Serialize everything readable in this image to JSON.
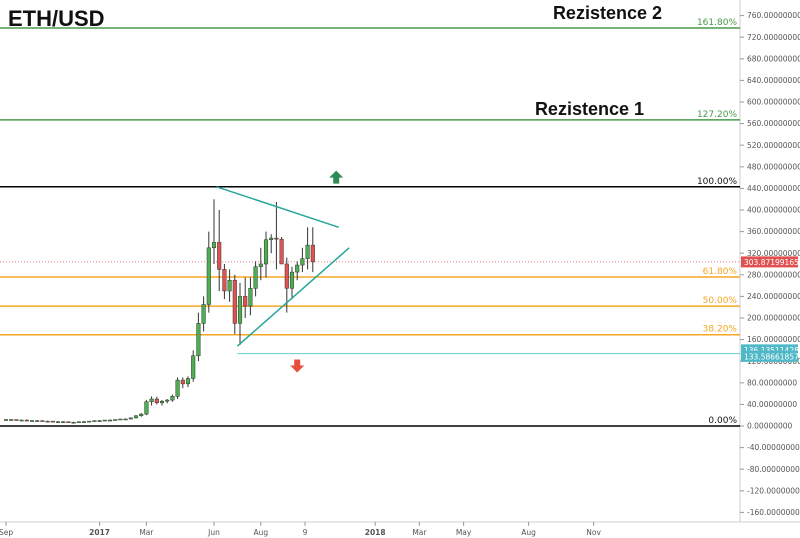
{
  "chart_data": {
    "type": "candlestick",
    "title": "ETH/USD",
    "ylim": [
      -180,
      780
    ],
    "y_ticks": [
      760,
      720,
      680,
      640,
      600,
      560,
      520,
      480,
      440,
      400,
      360,
      320,
      280,
      240,
      200,
      160,
      120,
      80,
      40,
      0,
      -40,
      -80,
      -120,
      -160
    ],
    "y_tick_labels": [
      "760.00000000",
      "720.00000000",
      "680.00000000",
      "640.00000000",
      "600.00000000",
      "560.00000000",
      "520.00000000",
      "480.00000000",
      "440.00000000",
      "400.00000000",
      "360.00000000",
      "320.00000000",
      "280.00000000",
      "240.00000000",
      "200.00000000",
      "160.00000000",
      "120.00000000",
      "80.00000000",
      "40.00000000",
      "0.00000000",
      "-40.00000000",
      "-80.00000000",
      "-120.00000000",
      "-160.00000000"
    ],
    "x_labels": [
      {
        "label": "Sep",
        "week": 0
      },
      {
        "label": "2017",
        "week": 18
      },
      {
        "label": "Mar",
        "week": 27
      },
      {
        "label": "Jun",
        "week": 40
      },
      {
        "label": "Aug",
        "week": 49
      },
      {
        "label": "9",
        "week": 57.5
      },
      {
        "label": "2018",
        "week": 71
      },
      {
        "label": "Mar",
        "week": 79.5
      },
      {
        "label": "May",
        "week": 88
      },
      {
        "label": "Aug",
        "week": 100.5
      },
      {
        "label": "Nov",
        "week": 113
      }
    ],
    "weeks_visible": 118,
    "candles": [
      {
        "w": 0,
        "o": 12,
        "h": 13,
        "l": 11,
        "c": 12
      },
      {
        "w": 1,
        "o": 12,
        "h": 13,
        "l": 11,
        "c": 12
      },
      {
        "w": 2,
        "o": 12,
        "h": 12,
        "l": 11,
        "c": 11
      },
      {
        "w": 3,
        "o": 11,
        "h": 12,
        "l": 10,
        "c": 11
      },
      {
        "w": 4,
        "o": 11,
        "h": 12,
        "l": 10,
        "c": 10
      },
      {
        "w": 5,
        "o": 10,
        "h": 11,
        "l": 9,
        "c": 10
      },
      {
        "w": 6,
        "o": 10,
        "h": 11,
        "l": 9,
        "c": 10
      },
      {
        "w": 7,
        "o": 10,
        "h": 10,
        "l": 9,
        "c": 9
      },
      {
        "w": 8,
        "o": 9,
        "h": 10,
        "l": 8,
        "c": 9
      },
      {
        "w": 9,
        "o": 9,
        "h": 9,
        "l": 8,
        "c": 8
      },
      {
        "w": 10,
        "o": 8,
        "h": 9,
        "l": 7,
        "c": 8
      },
      {
        "w": 11,
        "o": 8,
        "h": 9,
        "l": 7,
        "c": 8
      },
      {
        "w": 12,
        "o": 8,
        "h": 8,
        "l": 7,
        "c": 7
      },
      {
        "w": 13,
        "o": 7,
        "h": 8,
        "l": 7,
        "c": 7
      },
      {
        "w": 14,
        "o": 7,
        "h": 8,
        "l": 7,
        "c": 8
      },
      {
        "w": 15,
        "o": 8,
        "h": 9,
        "l": 7,
        "c": 8
      },
      {
        "w": 16,
        "o": 8,
        "h": 9,
        "l": 8,
        "c": 9
      },
      {
        "w": 17,
        "o": 9,
        "h": 10,
        "l": 8,
        "c": 10
      },
      {
        "w": 18,
        "o": 10,
        "h": 11,
        "l": 9,
        "c": 10
      },
      {
        "w": 19,
        "o": 10,
        "h": 11,
        "l": 9,
        "c": 11
      },
      {
        "w": 20,
        "o": 11,
        "h": 12,
        "l": 10,
        "c": 11
      },
      {
        "w": 21,
        "o": 11,
        "h": 12,
        "l": 10,
        "c": 12
      },
      {
        "w": 22,
        "o": 12,
        "h": 13,
        "l": 11,
        "c": 13
      },
      {
        "w": 23,
        "o": 13,
        "h": 14,
        "l": 12,
        "c": 13
      },
      {
        "w": 24,
        "o": 13,
        "h": 16,
        "l": 12,
        "c": 15
      },
      {
        "w": 25,
        "o": 15,
        "h": 20,
        "l": 14,
        "c": 19
      },
      {
        "w": 26,
        "o": 19,
        "h": 24,
        "l": 17,
        "c": 22
      },
      {
        "w": 27,
        "o": 22,
        "h": 48,
        "l": 20,
        "c": 45
      },
      {
        "w": 28,
        "o": 45,
        "h": 55,
        "l": 38,
        "c": 50
      },
      {
        "w": 29,
        "o": 50,
        "h": 54,
        "l": 40,
        "c": 43
      },
      {
        "w": 30,
        "o": 43,
        "h": 48,
        "l": 38,
        "c": 46
      },
      {
        "w": 31,
        "o": 46,
        "h": 50,
        "l": 42,
        "c": 48
      },
      {
        "w": 32,
        "o": 48,
        "h": 58,
        "l": 45,
        "c": 55
      },
      {
        "w": 33,
        "o": 55,
        "h": 90,
        "l": 50,
        "c": 85
      },
      {
        "w": 34,
        "o": 85,
        "h": 90,
        "l": 70,
        "c": 78
      },
      {
        "w": 35,
        "o": 78,
        "h": 92,
        "l": 72,
        "c": 88
      },
      {
        "w": 36,
        "o": 88,
        "h": 140,
        "l": 82,
        "c": 130
      },
      {
        "w": 37,
        "o": 130,
        "h": 210,
        "l": 120,
        "c": 190
      },
      {
        "w": 38,
        "o": 190,
        "h": 240,
        "l": 175,
        "c": 225
      },
      {
        "w": 39,
        "o": 225,
        "h": 360,
        "l": 210,
        "c": 330
      },
      {
        "w": 40,
        "o": 330,
        "h": 420,
        "l": 300,
        "c": 340
      },
      {
        "w": 41,
        "o": 340,
        "h": 400,
        "l": 250,
        "c": 290
      },
      {
        "w": 42,
        "o": 290,
        "h": 300,
        "l": 235,
        "c": 250
      },
      {
        "w": 43,
        "o": 250,
        "h": 290,
        "l": 230,
        "c": 270
      },
      {
        "w": 44,
        "o": 270,
        "h": 280,
        "l": 170,
        "c": 190
      },
      {
        "w": 45,
        "o": 190,
        "h": 265,
        "l": 150,
        "c": 240
      },
      {
        "w": 46,
        "o": 240,
        "h": 275,
        "l": 200,
        "c": 222
      },
      {
        "w": 47,
        "o": 222,
        "h": 275,
        "l": 205,
        "c": 255
      },
      {
        "w": 48,
        "o": 255,
        "h": 305,
        "l": 240,
        "c": 295
      },
      {
        "w": 49,
        "o": 295,
        "h": 330,
        "l": 270,
        "c": 300
      },
      {
        "w": 50,
        "o": 300,
        "h": 360,
        "l": 275,
        "c": 345
      },
      {
        "w": 51,
        "o": 345,
        "h": 355,
        "l": 320,
        "c": 348
      },
      {
        "w": 52,
        "o": 348,
        "h": 415,
        "l": 290,
        "c": 346
      },
      {
        "w": 53,
        "o": 346,
        "h": 350,
        "l": 300,
        "c": 300
      },
      {
        "w": 54,
        "o": 300,
        "h": 312,
        "l": 210,
        "c": 255
      },
      {
        "w": 55,
        "o": 255,
        "h": 295,
        "l": 235,
        "c": 285
      },
      {
        "w": 56,
        "o": 285,
        "h": 305,
        "l": 270,
        "c": 298
      },
      {
        "w": 57,
        "o": 298,
        "h": 330,
        "l": 285,
        "c": 310
      },
      {
        "w": 58,
        "o": 310,
        "h": 368,
        "l": 290,
        "c": 335
      },
      {
        "w": 59,
        "o": 335,
        "h": 368,
        "l": 285,
        "c": 304
      }
    ],
    "hlines": [
      {
        "name": "161.80%",
        "value": 737,
        "color": "#4a9a4a"
      },
      {
        "name": "127.20%",
        "value": 567,
        "color": "#4a9a4a"
      },
      {
        "name": "100.00%",
        "value": 443,
        "color": "#000000"
      },
      {
        "name": "61.80%",
        "value": 276,
        "color": "#f5a623"
      },
      {
        "name": "50.00%",
        "value": 222,
        "color": "#f5a623"
      },
      {
        "name": "38.20%",
        "value": 169,
        "color": "#f5a623"
      },
      {
        "name": "0.00%",
        "value": 0,
        "color": "#000000"
      }
    ],
    "trendlines": [
      {
        "from": {
          "w": 40.5,
          "v": 443
        },
        "to": {
          "w": 64,
          "v": 368
        },
        "color": "#26a69a"
      },
      {
        "from": {
          "w": 44.5,
          "v": 148
        },
        "to": {
          "w": 66,
          "v": 330
        },
        "color": "#26a69a"
      }
    ],
    "support_line": {
      "value": 134,
      "color": "#63c9d4"
    },
    "price_line": {
      "value": 303.87199165,
      "color": "#e05252"
    },
    "price_badges": [
      {
        "label": "303.87199165",
        "value": 303.87,
        "color": "#e05252"
      },
      {
        "label": "136.13511428",
        "value": 141,
        "color": "#4fb8c6"
      },
      {
        "label": "133.58661857",
        "value": 129,
        "color": "#4fb8c6"
      }
    ],
    "arrows": [
      {
        "direction": "up",
        "w": 63.5,
        "v": 460,
        "color": "#2e8b57"
      },
      {
        "direction": "down",
        "w": 56,
        "v": 112,
        "color": "#e74c3c"
      }
    ],
    "annotations": [
      {
        "text": "Rezistence 2",
        "v": 765
      },
      {
        "text": "Rezistence 1",
        "v": 587
      }
    ],
    "colors": {
      "up": "#4caf50",
      "down": "#e05252"
    }
  }
}
